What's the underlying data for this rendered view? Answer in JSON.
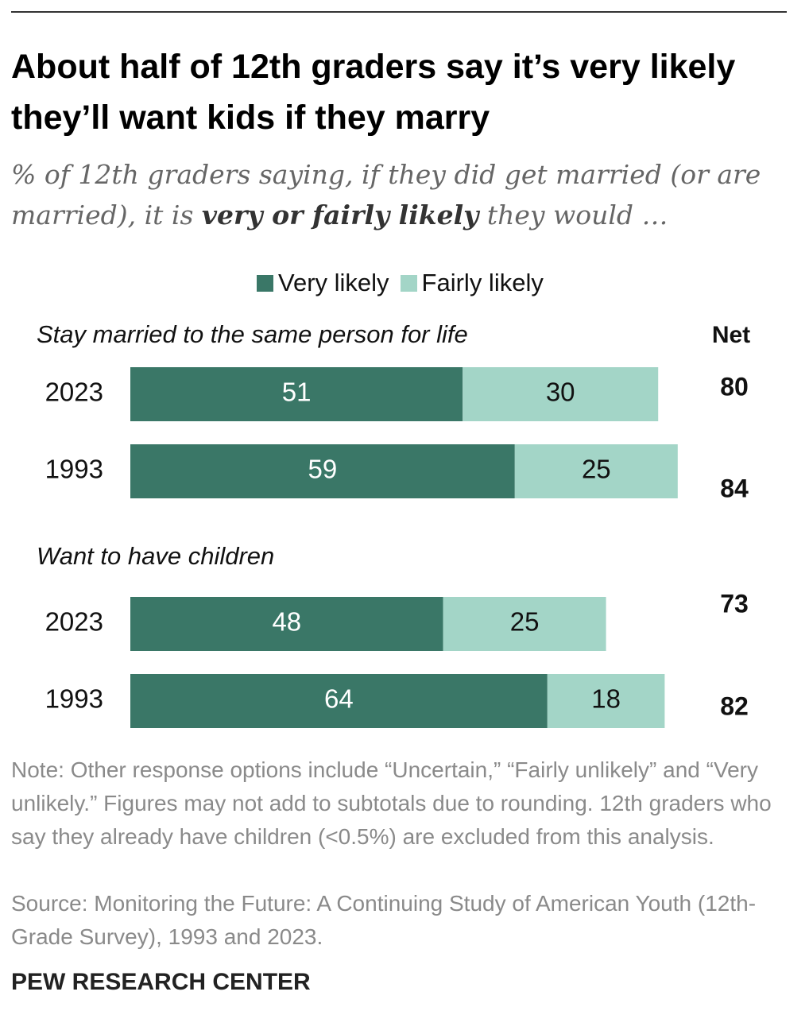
{
  "title": "About half of 12th graders say it’s very likely they’ll want kids if they marry",
  "subtitle": {
    "before": "% of 12th graders saying, if they did get married (or are married), it is ",
    "emphasis": "very or fairly likely",
    "after": " they would …"
  },
  "colors": {
    "very": "#3a7767",
    "fairly": "#a3d5c7"
  },
  "legend": {
    "very": "Very likely",
    "fairly": "Fairly likely"
  },
  "chart_data": {
    "type": "bar",
    "orientation": "horizontal",
    "stacked": true,
    "xlim": [
      0,
      100
    ],
    "net_label": "Net",
    "series_names": [
      "Very likely",
      "Fairly likely"
    ],
    "groups": [
      {
        "label": "Stay married to the same person for life",
        "rows": [
          {
            "year": "2023",
            "very": 51,
            "fairly": 30,
            "net": 80
          },
          {
            "year": "1993",
            "very": 59,
            "fairly": 25,
            "net": 84
          }
        ]
      },
      {
        "label": "Want to have children",
        "rows": [
          {
            "year": "2023",
            "very": 48,
            "fairly": 25,
            "net": 73
          },
          {
            "year": "1993",
            "very": 64,
            "fairly": 18,
            "net": 82
          }
        ]
      }
    ]
  },
  "note": "Note: Other response options include “Uncertain,” “Fairly unlikely” and “Very unlikely.” Figures may not add to subtotals due to rounding. 12th graders who say they already have children (<0.5%) are excluded from this analysis.",
  "source": "Source: Monitoring the Future: A Continuing Study of American Youth (12th-Grade Survey), 1993 and 2023.",
  "brand": "PEW RESEARCH CENTER"
}
